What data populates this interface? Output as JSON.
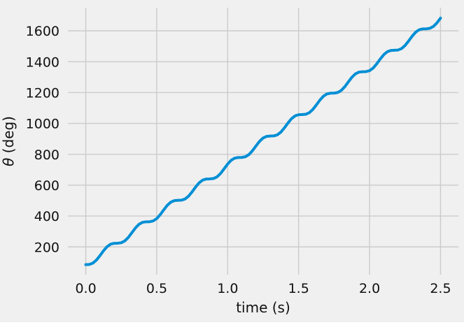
{
  "chart_data": {
    "type": "line",
    "title": "",
    "xlabel": "time (s)",
    "ylabel": "θ (deg)",
    "ylabel_symbol": "θ",
    "ylabel_rest": " (deg)",
    "xlim": [
      -0.126,
      2.626
    ],
    "ylim": [
      20,
      1750
    ],
    "grid": true,
    "legend_position": "none",
    "background_color": "#f0f0f0",
    "grid_color": "#cbcbcb",
    "line_color": "#008fd5",
    "line_width": 4,
    "xticks": {
      "values": [
        0.0,
        0.5,
        1.0,
        1.5,
        2.0,
        2.5
      ],
      "labels": [
        "0.0",
        "0.5",
        "1.0",
        "1.5",
        "2.0",
        "2.5"
      ]
    },
    "yticks": {
      "values": [
        200,
        400,
        600,
        800,
        1000,
        1200,
        1400,
        1600
      ],
      "labels": [
        "200",
        "400",
        "600",
        "800",
        "1000",
        "1200",
        "1400",
        "1600"
      ]
    },
    "series": [
      {
        "x": [
          0,
          0.025,
          0.05,
          0.075,
          0.1,
          0.125,
          0.15,
          0.175,
          0.2,
          0.225,
          0.25,
          0.275,
          0.3,
          0.325,
          0.35,
          0.375,
          0.4,
          0.425,
          0.45,
          0.475,
          0.5,
          0.525,
          0.55,
          0.575,
          0.6,
          0.625,
          0.65,
          0.675,
          0.7,
          0.725,
          0.75,
          0.775,
          0.8,
          0.825,
          0.85,
          0.875,
          0.9,
          0.925,
          0.95,
          0.975,
          1.0,
          1.025,
          1.05,
          1.075,
          1.1,
          1.125,
          1.15,
          1.175,
          1.2,
          1.225,
          1.25,
          1.275,
          1.3,
          1.325,
          1.35,
          1.375,
          1.4,
          1.425,
          1.45,
          1.475,
          1.5,
          1.525,
          1.55,
          1.575,
          1.6,
          1.625,
          1.65,
          1.675,
          1.7,
          1.725,
          1.75,
          1.775,
          1.8,
          1.825,
          1.85,
          1.875,
          1.9,
          1.925,
          1.95,
          1.975,
          2.0,
          2.025,
          2.05,
          2.075,
          2.1,
          2.125,
          2.15,
          2.175,
          2.2,
          2.225,
          2.25,
          2.275,
          2.3,
          2.325,
          2.35,
          2.375,
          2.4,
          2.425,
          2.45,
          2.475,
          2.5
        ],
        "y": [
          85.0,
          86.4,
          95.0,
          114.7,
          143.4,
          174.9,
          201.4,
          217.6,
          223.5,
          224.0,
          226.9,
          238.7,
          261.6,
          292.0,
          322.7,
          346.5,
          359.3,
          362.7,
          363.1,
          368.2,
          383.5,
          409.2,
          440.6,
          469.9,
          490.5,
          500.0,
          501.7,
          502.8,
          510.6,
          529.3,
          557.4,
          589.0,
          616.2,
          633.4,
          640.0,
          640.7,
          643.1,
          654.0,
          675.9,
          706.0,
          737.0,
          761.5,
          775.3,
          779.4,
          779.8,
          784.2,
          798.4,
          823.4,
          854.6,
          884.4,
          905.9,
          916.3,
          918.5,
          919.3,
          926.2,
          943.9,
          971.5,
          1003.1,
          1030.9,
          1049.1,
          1056.5,
          1057.4,
          1059.3,
          1069.3,
          1090.4,
          1119.9,
          1151.2,
          1176.6,
          1191.3,
          1196.1,
          1196.4,
          1200.2,
          1213.5,
          1237.6,
          1268.5,
          1298.8,
          1321.2,
          1332.5,
          1335.2,
          1335.8,
          1342.0,
          1358.7,
          1385.5,
          1417.1,
          1445.6,
          1464.7,
          1472.9,
          1474.1,
          1475.7,
          1484.8,
          1504.9,
          1533.9,
          1565.4,
          1591.5,
          1607.2,
          1612.7,
          1613.1,
          1616.3,
          1628.6,
          1651.9,
          1682.5
        ]
      }
    ]
  }
}
